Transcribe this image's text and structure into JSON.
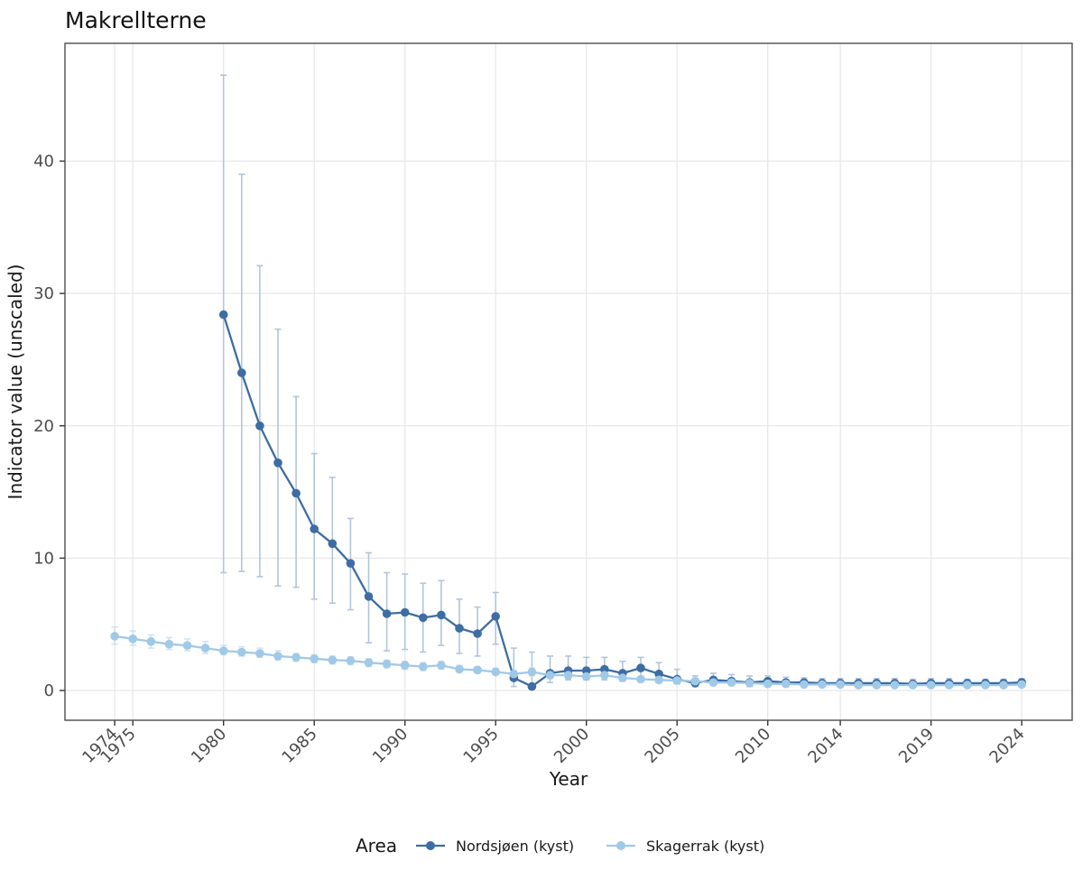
{
  "page": {
    "title": "Makrellterne"
  },
  "theme": {
    "background": "#ffffff",
    "panel_border": "#4d4d4d",
    "grid_color": "#e8e8e8",
    "tick_color": "#333333",
    "tick_label_color": "#4d4d4d",
    "title_color": "#111111"
  },
  "chart_data": {
    "type": "line",
    "title": "Makrellterne",
    "xlabel": "Year",
    "ylabel": "Indicator value (unscaled)",
    "xlim": [
      1971.26,
      2026.78
    ],
    "ylim": [
      -2.25,
      48.9
    ],
    "x_ticks": [
      1974,
      1975,
      1980,
      1985,
      1990,
      1995,
      2000,
      2005,
      2010,
      2014,
      2019,
      2024
    ],
    "y_ticks": [
      0,
      10,
      20,
      30,
      40
    ],
    "grid": "major-only",
    "error_bars": true,
    "legend": {
      "title": "Area",
      "position": "bottom"
    },
    "point_format": [
      "year",
      "value",
      "ci_low",
      "ci_high"
    ],
    "series": [
      {
        "name": "Nordsjøen (kyst)",
        "color": "#3d6da3",
        "error_color": "#b2c5da",
        "points": [
          [
            1980,
            28.4,
            8.9,
            46.5
          ],
          [
            1981,
            24.0,
            9.0,
            39.0
          ],
          [
            1982,
            20.0,
            8.6,
            32.1
          ],
          [
            1983,
            17.2,
            7.9,
            27.3
          ],
          [
            1984,
            14.9,
            7.8,
            22.2
          ],
          [
            1985,
            12.2,
            6.9,
            17.9
          ],
          [
            1986,
            11.1,
            6.6,
            16.1
          ],
          [
            1987,
            9.6,
            6.1,
            13.0
          ],
          [
            1988,
            7.1,
            3.6,
            10.4
          ],
          [
            1989,
            5.8,
            3.0,
            8.9
          ],
          [
            1990,
            5.9,
            3.1,
            8.8
          ],
          [
            1991,
            5.5,
            2.9,
            8.1
          ],
          [
            1992,
            5.7,
            3.4,
            8.3
          ],
          [
            1993,
            4.7,
            2.8,
            6.9
          ],
          [
            1994,
            4.3,
            2.6,
            6.3
          ],
          [
            1995,
            5.6,
            3.5,
            7.4
          ],
          [
            1996,
            0.95,
            0.3,
            3.2
          ],
          [
            1997,
            0.3,
            0.1,
            2.9
          ],
          [
            1998,
            1.3,
            0.6,
            2.6
          ],
          [
            1999,
            1.5,
            0.8,
            2.6
          ],
          [
            2000,
            1.5,
            0.8,
            2.5
          ],
          [
            2001,
            1.6,
            0.8,
            2.5
          ],
          [
            2002,
            1.3,
            0.7,
            2.2
          ],
          [
            2003,
            1.7,
            0.9,
            2.5
          ],
          [
            2004,
            1.25,
            0.6,
            2.1
          ],
          [
            2005,
            0.85,
            0.5,
            1.6
          ],
          [
            2006,
            0.55,
            0.3,
            1.1
          ],
          [
            2007,
            0.8,
            0.4,
            1.3
          ],
          [
            2008,
            0.7,
            0.4,
            1.2
          ],
          [
            2009,
            0.6,
            0.3,
            1.1
          ],
          [
            2010,
            0.7,
            0.4,
            1.1
          ],
          [
            2011,
            0.6,
            0.3,
            1.0
          ],
          [
            2012,
            0.6,
            0.35,
            0.95
          ],
          [
            2013,
            0.55,
            0.3,
            0.9
          ],
          [
            2014,
            0.55,
            0.3,
            0.9
          ],
          [
            2015,
            0.55,
            0.3,
            0.9
          ],
          [
            2016,
            0.55,
            0.3,
            0.9
          ],
          [
            2017,
            0.55,
            0.3,
            0.9
          ],
          [
            2018,
            0.5,
            0.3,
            0.85
          ],
          [
            2019,
            0.55,
            0.3,
            0.9
          ],
          [
            2020,
            0.55,
            0.3,
            0.9
          ],
          [
            2021,
            0.55,
            0.3,
            0.85
          ],
          [
            2022,
            0.55,
            0.3,
            0.85
          ],
          [
            2023,
            0.55,
            0.3,
            0.85
          ],
          [
            2024,
            0.6,
            0.4,
            0.9
          ]
        ]
      },
      {
        "name": "Skagerrak (kyst)",
        "color": "#a0c9e8",
        "error_color": "#cfe2f2",
        "points": [
          [
            1974,
            4.1,
            3.5,
            4.8
          ],
          [
            1975,
            3.9,
            3.4,
            4.5
          ],
          [
            1976,
            3.7,
            3.2,
            4.2
          ],
          [
            1977,
            3.5,
            3.1,
            4.0
          ],
          [
            1978,
            3.4,
            3.0,
            3.9
          ],
          [
            1979,
            3.2,
            2.8,
            3.7
          ],
          [
            1980,
            3.0,
            2.7,
            3.4
          ],
          [
            1981,
            2.9,
            2.6,
            3.3
          ],
          [
            1982,
            2.8,
            2.5,
            3.2
          ],
          [
            1983,
            2.6,
            2.3,
            3.0
          ],
          [
            1984,
            2.5,
            2.2,
            2.8
          ],
          [
            1985,
            2.4,
            2.1,
            2.7
          ],
          [
            1986,
            2.3,
            2.0,
            2.6
          ],
          [
            1987,
            2.25,
            1.95,
            2.55
          ],
          [
            1988,
            2.1,
            1.8,
            2.4
          ],
          [
            1989,
            2.0,
            1.7,
            2.3
          ],
          [
            1990,
            1.9,
            1.6,
            2.2
          ],
          [
            1991,
            1.8,
            1.5,
            2.1
          ],
          [
            1992,
            1.9,
            1.6,
            2.2
          ],
          [
            1993,
            1.6,
            1.4,
            1.9
          ],
          [
            1994,
            1.55,
            1.3,
            1.8
          ],
          [
            1995,
            1.4,
            1.2,
            1.7
          ],
          [
            1996,
            1.25,
            1.0,
            1.5
          ],
          [
            1997,
            1.4,
            1.1,
            1.7
          ],
          [
            1998,
            1.15,
            0.9,
            1.45
          ],
          [
            1999,
            1.15,
            0.9,
            1.4
          ],
          [
            2000,
            1.05,
            0.85,
            1.3
          ],
          [
            2001,
            1.15,
            0.9,
            1.4
          ],
          [
            2002,
            0.95,
            0.75,
            1.2
          ],
          [
            2003,
            0.85,
            0.7,
            1.05
          ],
          [
            2004,
            0.8,
            0.65,
            1.0
          ],
          [
            2005,
            0.75,
            0.6,
            0.95
          ],
          [
            2006,
            0.7,
            0.55,
            0.9
          ],
          [
            2007,
            0.6,
            0.5,
            0.8
          ],
          [
            2008,
            0.6,
            0.45,
            0.75
          ],
          [
            2009,
            0.55,
            0.4,
            0.7
          ],
          [
            2010,
            0.5,
            0.4,
            0.7
          ],
          [
            2011,
            0.5,
            0.4,
            0.65
          ],
          [
            2012,
            0.45,
            0.35,
            0.6
          ],
          [
            2013,
            0.45,
            0.35,
            0.6
          ],
          [
            2014,
            0.45,
            0.35,
            0.6
          ],
          [
            2015,
            0.4,
            0.3,
            0.55
          ],
          [
            2016,
            0.4,
            0.3,
            0.55
          ],
          [
            2017,
            0.4,
            0.3,
            0.55
          ],
          [
            2018,
            0.4,
            0.3,
            0.55
          ],
          [
            2019,
            0.4,
            0.3,
            0.55
          ],
          [
            2020,
            0.4,
            0.3,
            0.55
          ],
          [
            2021,
            0.4,
            0.3,
            0.55
          ],
          [
            2022,
            0.4,
            0.3,
            0.55
          ],
          [
            2023,
            0.4,
            0.3,
            0.55
          ],
          [
            2024,
            0.45,
            0.3,
            0.65
          ]
        ]
      }
    ]
  }
}
